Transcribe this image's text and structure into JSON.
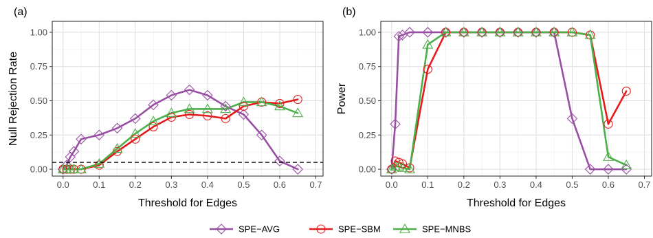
{
  "chart_data": [
    {
      "type": "line",
      "panel_label": "(a)",
      "xlabel": "Threshold for Edges",
      "ylabel": "Null Rejection Rate",
      "xlim": [
        -0.03,
        0.72
      ],
      "ylim": [
        -0.05,
        1.08
      ],
      "xticks": [
        0.0,
        0.1,
        0.2,
        0.3,
        0.4,
        0.5,
        0.6,
        0.7
      ],
      "xtick_labels": [
        "0.0",
        "0.1",
        "0.2",
        "0.3",
        "0.4",
        "0.5",
        "0.6",
        "0.7"
      ],
      "yticks": [
        0.0,
        0.25,
        0.5,
        0.75,
        1.0
      ],
      "ytick_labels": [
        "0.00",
        "0.25",
        "0.50",
        "0.75",
        "1.00"
      ],
      "grid": true,
      "reference_line": {
        "y": 0.05,
        "style": "dashed"
      },
      "series": [
        {
          "name": "SPE−AVG",
          "color": "#984ea3",
          "marker": "diamond",
          "x": [
            0.0,
            0.01,
            0.02,
            0.03,
            0.05,
            0.1,
            0.15,
            0.2,
            0.25,
            0.3,
            0.35,
            0.4,
            0.45,
            0.5,
            0.55,
            0.6,
            0.65
          ],
          "y": [
            0.0,
            0.03,
            0.09,
            0.13,
            0.22,
            0.25,
            0.3,
            0.37,
            0.47,
            0.54,
            0.58,
            0.54,
            0.46,
            0.4,
            0.25,
            0.06,
            0.0
          ]
        },
        {
          "name": "SPE−SBM",
          "color": "#e41a1c",
          "marker": "circle",
          "x": [
            0.0,
            0.01,
            0.02,
            0.03,
            0.05,
            0.1,
            0.15,
            0.2,
            0.25,
            0.3,
            0.35,
            0.4,
            0.45,
            0.5,
            0.55,
            0.6,
            0.65
          ],
          "y": [
            0.0,
            0.0,
            0.0,
            0.0,
            0.0,
            0.03,
            0.13,
            0.22,
            0.31,
            0.38,
            0.4,
            0.39,
            0.37,
            0.46,
            0.49,
            0.48,
            0.51
          ]
        },
        {
          "name": "SPE−MNBS",
          "color": "#4daf4a",
          "marker": "triangle",
          "x": [
            0.0,
            0.01,
            0.02,
            0.03,
            0.05,
            0.1,
            0.15,
            0.2,
            0.25,
            0.3,
            0.35,
            0.4,
            0.45,
            0.5,
            0.55,
            0.6,
            0.65
          ],
          "y": [
            0.0,
            0.0,
            0.0,
            0.0,
            0.0,
            0.04,
            0.15,
            0.26,
            0.35,
            0.41,
            0.44,
            0.44,
            0.44,
            0.49,
            0.49,
            0.46,
            0.41
          ]
        }
      ]
    },
    {
      "type": "line",
      "panel_label": "(b)",
      "xlabel": "Threshold for Edges",
      "ylabel": "Power",
      "xlim": [
        -0.03,
        0.72
      ],
      "ylim": [
        -0.05,
        1.08
      ],
      "xticks": [
        0.0,
        0.1,
        0.2,
        0.3,
        0.4,
        0.5,
        0.6,
        0.7
      ],
      "xtick_labels": [
        "0.0",
        "0.1",
        "0.2",
        "0.3",
        "0.4",
        "0.5",
        "0.6",
        "0.7"
      ],
      "yticks": [
        0.0,
        0.25,
        0.5,
        0.75,
        1.0
      ],
      "ytick_labels": [
        "0.00",
        "0.25",
        "0.50",
        "0.75",
        "1.00"
      ],
      "grid": true,
      "series": [
        {
          "name": "SPE−AVG",
          "color": "#984ea3",
          "marker": "diamond",
          "x": [
            0.0,
            0.01,
            0.02,
            0.03,
            0.05,
            0.1,
            0.15,
            0.2,
            0.25,
            0.3,
            0.35,
            0.4,
            0.45,
            0.5,
            0.55,
            0.6,
            0.65
          ],
          "y": [
            0.0,
            0.33,
            0.97,
            0.98,
            1.0,
            1.0,
            1.0,
            1.0,
            1.0,
            1.0,
            1.0,
            1.0,
            1.0,
            0.37,
            0.0,
            0.0,
            0.0
          ]
        },
        {
          "name": "SPE−SBM",
          "color": "#e41a1c",
          "marker": "circle",
          "x": [
            0.0,
            0.01,
            0.02,
            0.03,
            0.05,
            0.1,
            0.15,
            0.2,
            0.25,
            0.3,
            0.35,
            0.4,
            0.45,
            0.5,
            0.55,
            0.6,
            0.65
          ],
          "y": [
            0.0,
            0.06,
            0.05,
            0.04,
            0.01,
            0.73,
            1.0,
            1.0,
            1.0,
            1.0,
            1.0,
            1.0,
            1.0,
            1.0,
            0.98,
            0.33,
            0.57
          ]
        },
        {
          "name": "SPE−MNBS",
          "color": "#4daf4a",
          "marker": "triangle",
          "x": [
            0.0,
            0.01,
            0.02,
            0.03,
            0.05,
            0.1,
            0.15,
            0.2,
            0.25,
            0.3,
            0.35,
            0.4,
            0.45,
            0.5,
            0.55,
            0.6,
            0.65
          ],
          "y": [
            0.0,
            0.02,
            0.02,
            0.01,
            0.0,
            0.91,
            1.0,
            1.0,
            1.0,
            1.0,
            1.0,
            1.0,
            1.0,
            1.0,
            0.98,
            0.09,
            0.03
          ]
        }
      ]
    }
  ],
  "legend": {
    "placement": "bottom",
    "items": [
      {
        "label": "SPE−AVG",
        "color": "#984ea3",
        "marker": "diamond"
      },
      {
        "label": "SPE−SBM",
        "color": "#e41a1c",
        "marker": "circle"
      },
      {
        "label": "SPE−MNBS",
        "color": "#4daf4a",
        "marker": "triangle"
      }
    ]
  }
}
